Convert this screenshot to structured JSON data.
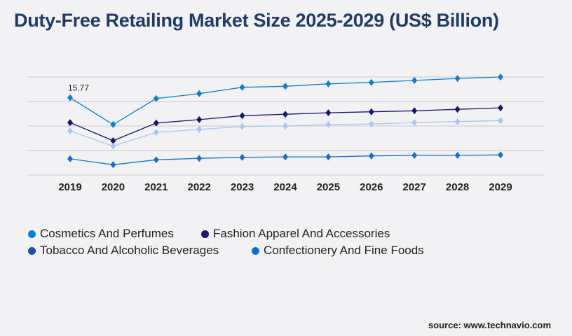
{
  "chart_data": {
    "type": "line",
    "title": "Duty-Free Retailing Market Size 2025-2029 (US$ Billion)",
    "categories": [
      "2019",
      "2020",
      "2021",
      "2022",
      "2023",
      "2024",
      "2025",
      "2026",
      "2027",
      "2028",
      "2029"
    ],
    "ylim": [
      0,
      20
    ],
    "grid": true,
    "legend_placement": "bottom-left",
    "annotations": [
      {
        "category": "2019",
        "text": "15.77"
      }
    ],
    "series": [
      {
        "name": "Cosmetics And Perfumes",
        "color": "#0a7fd4",
        "values": [
          15.77,
          10.3,
          15.6,
          16.6,
          17.9,
          18.1,
          18.6,
          18.9,
          19.3,
          19.7,
          20.0
        ]
      },
      {
        "name": "Fashion Apparel And Accessories",
        "color": "#1a1470",
        "values": [
          10.7,
          7.0,
          10.6,
          11.3,
          12.1,
          12.4,
          12.7,
          12.9,
          13.1,
          13.4,
          13.7
        ]
      },
      {
        "name": "Tobacco And Alcoholic Beverages",
        "color": "#a9c7f5",
        "legend_color": "#1e4fb5",
        "values": [
          9.0,
          5.9,
          8.7,
          9.3,
          9.9,
          10.0,
          10.3,
          10.4,
          10.7,
          10.9,
          11.1
        ]
      },
      {
        "name": "Confectionery And Fine Foods",
        "color": "#1270d8",
        "values": [
          3.3,
          2.1,
          3.1,
          3.4,
          3.6,
          3.7,
          3.7,
          3.9,
          4.0,
          4.0,
          4.1
        ]
      }
    ]
  },
  "source": "source: www.technavio.com"
}
